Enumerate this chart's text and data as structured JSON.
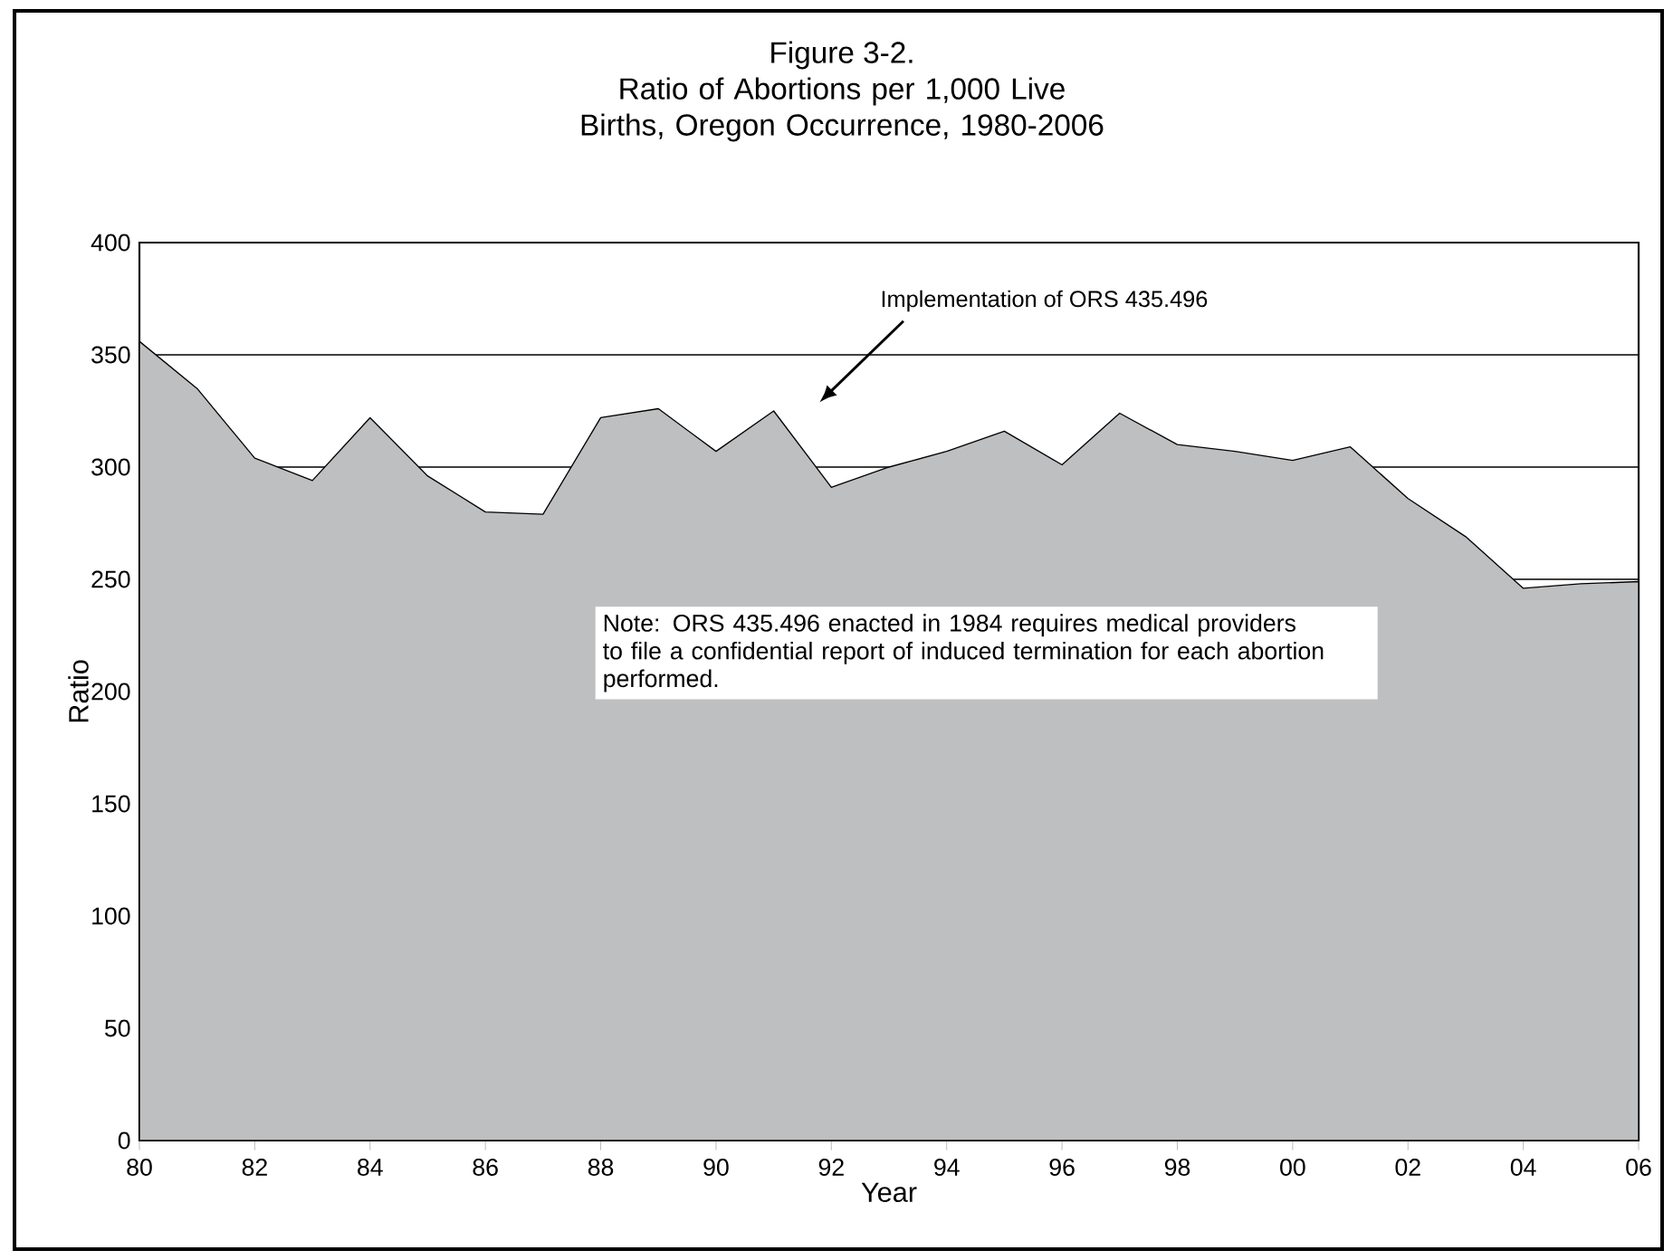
{
  "chart_data": {
    "type": "area",
    "title": "Figure 3-2.",
    "subtitle": "Ratio of Abortions per 1,000 Live Births, Oregon Occurrence, 1980-2006",
    "xlabel": "Year",
    "ylabel": "Ratio",
    "x": [
      1980,
      1981,
      1982,
      1983,
      1984,
      1985,
      1986,
      1987,
      1988,
      1989,
      1990,
      1991,
      1992,
      1993,
      1994,
      1995,
      1996,
      1997,
      1998,
      1999,
      2000,
      2001,
      2002,
      2003,
      2004,
      2005,
      2006
    ],
    "values": [
      356,
      335,
      304,
      294,
      322,
      296,
      280,
      279,
      322,
      326,
      307,
      325,
      291,
      300,
      307,
      316,
      301,
      324,
      310,
      307,
      303,
      309,
      286,
      269,
      246,
      248,
      249
    ],
    "color": "#bebfc1",
    "xlim": [
      1980,
      2006
    ],
    "xticks": [
      {
        "value": 1980,
        "label": "80"
      },
      {
        "value": 1982,
        "label": "82"
      },
      {
        "value": 1984,
        "label": "84"
      },
      {
        "value": 1986,
        "label": "86"
      },
      {
        "value": 1988,
        "label": "88"
      },
      {
        "value": 1990,
        "label": "90"
      },
      {
        "value": 1992,
        "label": "92"
      },
      {
        "value": 1994,
        "label": "94"
      },
      {
        "value": 1996,
        "label": "96"
      },
      {
        "value": 1998,
        "label": "98"
      },
      {
        "value": 2000,
        "label": "00"
      },
      {
        "value": 2002,
        "label": "02"
      },
      {
        "value": 2004,
        "label": "04"
      },
      {
        "value": 2006,
        "label": "06"
      }
    ],
    "ylim": [
      0,
      400
    ],
    "yticks": [
      0,
      50,
      100,
      150,
      200,
      250,
      300,
      350,
      400
    ],
    "grid": "y",
    "annotations": [
      "Implementation of ORS 435.496",
      "Note:  ORS 435.496 enacted in 1984 requires medical providers to file a confidential report of induced termination for each abortion performed."
    ]
  }
}
